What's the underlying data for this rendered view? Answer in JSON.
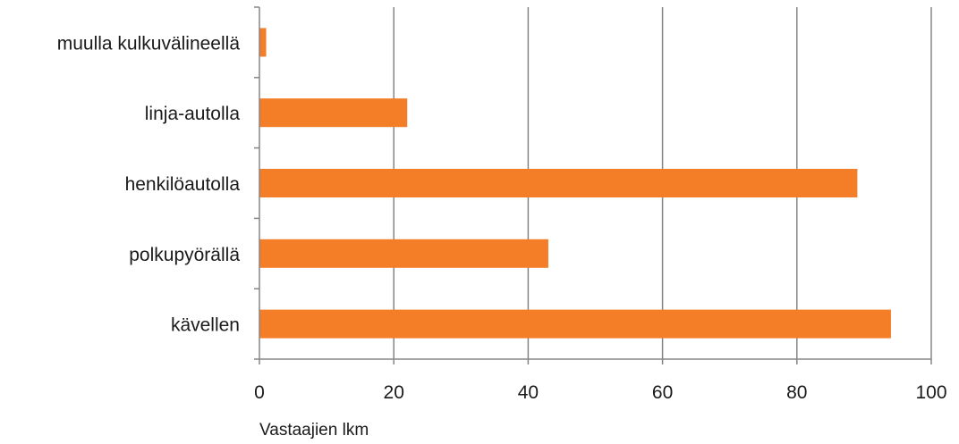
{
  "chart_data": {
    "type": "bar",
    "orientation": "horizontal",
    "categories": [
      "kävellen",
      "polkupyörällä",
      "henkilöautolla",
      "linja-autolla",
      "muulla kulkuvälineellä"
    ],
    "values": [
      94,
      43,
      89,
      22,
      1
    ],
    "xlim": [
      0,
      100
    ],
    "xticks": [
      0,
      20,
      40,
      60,
      80,
      100
    ],
    "xlabel": "Vastaajien lkm",
    "ylabel": "",
    "title": "",
    "grid": "vertical",
    "legend": "none",
    "bar_color": "#F47E27",
    "grid_color": "#868686",
    "axis_color": "#868686"
  }
}
